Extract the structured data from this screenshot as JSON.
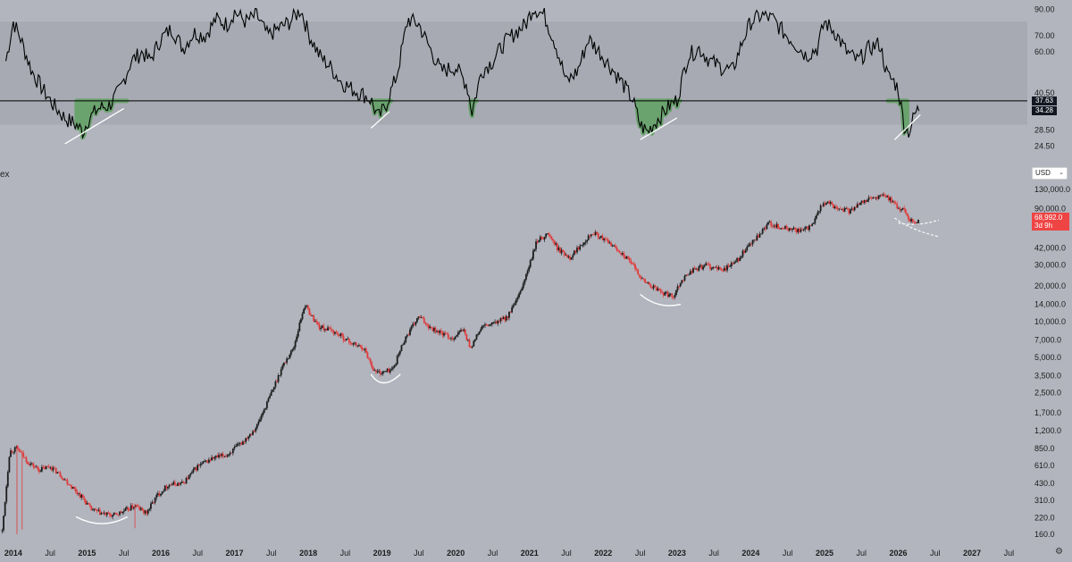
{
  "pane_label": "ex",
  "currency": {
    "selected": "USD",
    "icon": "chevron-down-icon"
  },
  "settings_icon": "gear-icon",
  "colors": {
    "background": "#b2b5be",
    "rsi_band": "#a7aab3",
    "rsi_line": "#000000",
    "highlight": "#56a158",
    "candle_up": "#1c1c1c",
    "candle_down": "#e03b3b",
    "annotation": "#ffffff",
    "price_tag": "#ef4444"
  },
  "chart_data": [
    {
      "type": "line",
      "panel": "oscillator",
      "y_scale": "log",
      "ylim": [
        22,
        95
      ],
      "band": [
        30,
        80
      ],
      "hline": 37.63,
      "tags": [
        {
          "value": 37.63,
          "label": "37.63"
        },
        {
          "value": 34.28,
          "label": "34.28"
        }
      ],
      "y_ticks": [
        {
          "value": 90,
          "label": "90.00"
        },
        {
          "value": 70,
          "label": "70.00"
        },
        {
          "value": 60,
          "label": "60.00"
        },
        {
          "value": 40.5,
          "label": "40.50"
        },
        {
          "value": 28.5,
          "label": "28.50"
        },
        {
          "value": 24.5,
          "label": "24.50"
        }
      ],
      "x": [
        2013.9,
        2014.0,
        2014.1,
        2014.25,
        2014.4,
        2014.55,
        2014.7,
        2014.85,
        2014.95,
        2015.0,
        2015.15,
        2015.3,
        2015.45,
        2015.6,
        2015.75,
        2015.85,
        2016.0,
        2016.15,
        2016.3,
        2016.45,
        2016.6,
        2016.75,
        2016.9,
        2017.0,
        2017.15,
        2017.3,
        2017.45,
        2017.6,
        2017.75,
        2017.9,
        2018.0,
        2018.15,
        2018.3,
        2018.45,
        2018.6,
        2018.75,
        2018.85,
        2018.95,
        2019.05,
        2019.2,
        2019.35,
        2019.5,
        2019.65,
        2019.8,
        2020.0,
        2020.15,
        2020.22,
        2020.35,
        2020.5,
        2020.65,
        2020.8,
        2020.95,
        2021.05,
        2021.2,
        2021.35,
        2021.5,
        2021.65,
        2021.8,
        2021.95,
        2022.1,
        2022.25,
        2022.4,
        2022.5,
        2022.6,
        2022.75,
        2022.9,
        2023.0,
        2023.15,
        2023.3,
        2023.45,
        2023.6,
        2023.75,
        2023.9,
        2024.0,
        2024.15,
        2024.3,
        2024.45,
        2024.6,
        2024.75,
        2024.9,
        2025.0,
        2025.15,
        2025.3,
        2025.45,
        2025.6,
        2025.75,
        2025.85,
        2025.95,
        2026.0,
        2026.08,
        2026.15,
        2026.22,
        2026.28
      ],
      "values": [
        55,
        80,
        68,
        50,
        42,
        36,
        32,
        30,
        28,
        31,
        35,
        36,
        42,
        55,
        60,
        55,
        68,
        75,
        62,
        72,
        70,
        82,
        78,
        88,
        80,
        85,
        70,
        75,
        80,
        90,
        72,
        58,
        52,
        45,
        42,
        40,
        38,
        32,
        36,
        48,
        82,
        78,
        62,
        50,
        52,
        44,
        34,
        50,
        55,
        65,
        72,
        78,
        92,
        85,
        65,
        45,
        50,
        68,
        60,
        52,
        45,
        38,
        30,
        28,
        32,
        36,
        38,
        58,
        62,
        55,
        52,
        50,
        68,
        80,
        85,
        82,
        72,
        65,
        58,
        62,
        80,
        72,
        60,
        55,
        62,
        65,
        48,
        45,
        42,
        30,
        28,
        33,
        35
      ],
      "highlight_ranges": [
        [
          2014.85,
          2015.55
        ],
        [
          2018.85,
          2019.12
        ],
        [
          2020.18,
          2020.28
        ],
        [
          2022.45,
          2023.05
        ],
        [
          2025.85,
          2026.12
        ]
      ],
      "trendlines": [
        [
          [
            2014.7,
            25
          ],
          [
            2015.5,
            35
          ]
        ],
        [
          [
            2018.85,
            29
          ],
          [
            2019.1,
            34
          ]
        ],
        [
          [
            2022.5,
            26
          ],
          [
            2023.0,
            32
          ]
        ],
        [
          [
            2025.95,
            26
          ],
          [
            2026.3,
            33
          ]
        ]
      ]
    },
    {
      "type": "candlestick",
      "panel": "price",
      "y_scale": "log",
      "ylim": [
        160,
        150000
      ],
      "x_ticks": [
        {
          "value": 2014.0,
          "label": "2014",
          "bold": true
        },
        {
          "value": 2014.5,
          "label": "Jul"
        },
        {
          "value": 2015.0,
          "label": "2015",
          "bold": true
        },
        {
          "value": 2015.5,
          "label": "Jul"
        },
        {
          "value": 2016.0,
          "label": "2016",
          "bold": true
        },
        {
          "value": 2016.5,
          "label": "Jul"
        },
        {
          "value": 2017.0,
          "label": "2017",
          "bold": true
        },
        {
          "value": 2017.5,
          "label": "Jul"
        },
        {
          "value": 2018.0,
          "label": "2018",
          "bold": true
        },
        {
          "value": 2018.5,
          "label": "Jul"
        },
        {
          "value": 2019.0,
          "label": "2019",
          "bold": true
        },
        {
          "value": 2019.5,
          "label": "Jul"
        },
        {
          "value": 2020.0,
          "label": "2020",
          "bold": true
        },
        {
          "value": 2020.5,
          "label": "Jul"
        },
        {
          "value": 2021.0,
          "label": "2021",
          "bold": true
        },
        {
          "value": 2021.5,
          "label": "Jul"
        },
        {
          "value": 2022.0,
          "label": "2022",
          "bold": true
        },
        {
          "value": 2022.5,
          "label": "Jul"
        },
        {
          "value": 2023.0,
          "label": "2023",
          "bold": true
        },
        {
          "value": 2023.5,
          "label": "Jul"
        },
        {
          "value": 2024.0,
          "label": "2024",
          "bold": true
        },
        {
          "value": 2024.5,
          "label": "Jul"
        },
        {
          "value": 2025.0,
          "label": "2025",
          "bold": true
        },
        {
          "value": 2025.5,
          "label": "Jul"
        },
        {
          "value": 2026.0,
          "label": "2026",
          "bold": true
        },
        {
          "value": 2026.5,
          "label": "Jul"
        },
        {
          "value": 2027.0,
          "label": "2027",
          "bold": true
        },
        {
          "value": 2027.5,
          "label": "Jul"
        }
      ],
      "y_ticks": [
        {
          "value": 130000,
          "label": "130,000.0"
        },
        {
          "value": 90000,
          "label": "90,000.0"
        },
        {
          "value": 42000,
          "label": "42,000.0"
        },
        {
          "value": 30000,
          "label": "30,000.0"
        },
        {
          "value": 20000,
          "label": "20,000.0"
        },
        {
          "value": 14000,
          "label": "14,000.0"
        },
        {
          "value": 10000,
          "label": "10,000.0"
        },
        {
          "value": 7000,
          "label": "7,000.0"
        },
        {
          "value": 5000,
          "label": "5,000.0"
        },
        {
          "value": 3500,
          "label": "3,500.0"
        },
        {
          "value": 2500,
          "label": "2,500.0"
        },
        {
          "value": 1700,
          "label": "1,700.0"
        },
        {
          "value": 1200,
          "label": "1,200.0"
        },
        {
          "value": 850,
          "label": "850.0"
        },
        {
          "value": 610,
          "label": "610.0"
        },
        {
          "value": 430,
          "label": "430.0"
        },
        {
          "value": 310,
          "label": "310.0"
        },
        {
          "value": 220,
          "label": "220.0"
        },
        {
          "value": 160,
          "label": "160.0"
        }
      ],
      "last_price": {
        "value": 68992,
        "label": "68,992.0",
        "countdown": "3d 9h"
      },
      "x": [
        2013.85,
        2013.95,
        2014.05,
        2014.2,
        2014.35,
        2014.5,
        2014.65,
        2014.8,
        2014.95,
        2015.05,
        2015.2,
        2015.35,
        2015.5,
        2015.65,
        2015.8,
        2015.95,
        2016.1,
        2016.3,
        2016.5,
        2016.7,
        2016.9,
        2017.1,
        2017.3,
        2017.5,
        2017.65,
        2017.8,
        2017.95,
        2018.05,
        2018.15,
        2018.3,
        2018.45,
        2018.6,
        2018.75,
        2018.9,
        2019.0,
        2019.15,
        2019.3,
        2019.5,
        2019.65,
        2019.8,
        2019.95,
        2020.1,
        2020.2,
        2020.35,
        2020.5,
        2020.7,
        2020.85,
        2021.0,
        2021.1,
        2021.25,
        2021.4,
        2021.55,
        2021.7,
        2021.85,
        2021.95,
        2022.1,
        2022.25,
        2022.4,
        2022.55,
        2022.7,
        2022.85,
        2022.95,
        2023.05,
        2023.2,
        2023.4,
        2023.6,
        2023.8,
        2023.95,
        2024.1,
        2024.25,
        2024.4,
        2024.55,
        2024.7,
        2024.85,
        2024.95,
        2025.05,
        2025.2,
        2025.35,
        2025.5,
        2025.65,
        2025.8,
        2025.9,
        2026.0,
        2026.08,
        2026.15,
        2026.22,
        2026.28
      ],
      "values": [
        170,
        800,
        850,
        650,
        560,
        600,
        500,
        400,
        320,
        260,
        240,
        230,
        250,
        280,
        240,
        340,
        420,
        430,
        600,
        700,
        750,
        950,
        1300,
        2500,
        4200,
        6000,
        14000,
        11000,
        9000,
        8500,
        7500,
        6500,
        6000,
        3800,
        3700,
        4000,
        7000,
        11000,
        9000,
        8000,
        7200,
        8600,
        6000,
        9000,
        9500,
        11000,
        16000,
        30000,
        48000,
        55000,
        40000,
        35000,
        45000,
        57000,
        52000,
        45000,
        38000,
        30000,
        22000,
        19000,
        17000,
        16500,
        22000,
        27000,
        30000,
        27000,
        32000,
        42000,
        52000,
        68000,
        62000,
        60000,
        58000,
        66000,
        95000,
        100000,
        90000,
        85000,
        105000,
        110000,
        115000,
        108000,
        90000,
        88000,
        72000,
        70000,
        68992
      ],
      "arcs": [
        [
          [
            2014.85,
            225
          ],
          [
            2015.2,
            205
          ],
          [
            2015.55,
            225
          ]
        ],
        [
          [
            2018.85,
            3600
          ],
          [
            2019.0,
            3050
          ],
          [
            2019.25,
            3600
          ]
        ],
        [
          [
            2022.5,
            17000
          ],
          [
            2022.75,
            15000
          ],
          [
            2023.05,
            14000
          ]
        ]
      ],
      "dashed_arcs": [
        [
          [
            2025.95,
            75000
          ],
          [
            2026.15,
            60000
          ],
          [
            2026.55,
            52000
          ]
        ],
        [
          [
            2026.0,
            68000
          ],
          [
            2026.25,
            63000
          ],
          [
            2026.55,
            72000
          ]
        ]
      ]
    }
  ]
}
